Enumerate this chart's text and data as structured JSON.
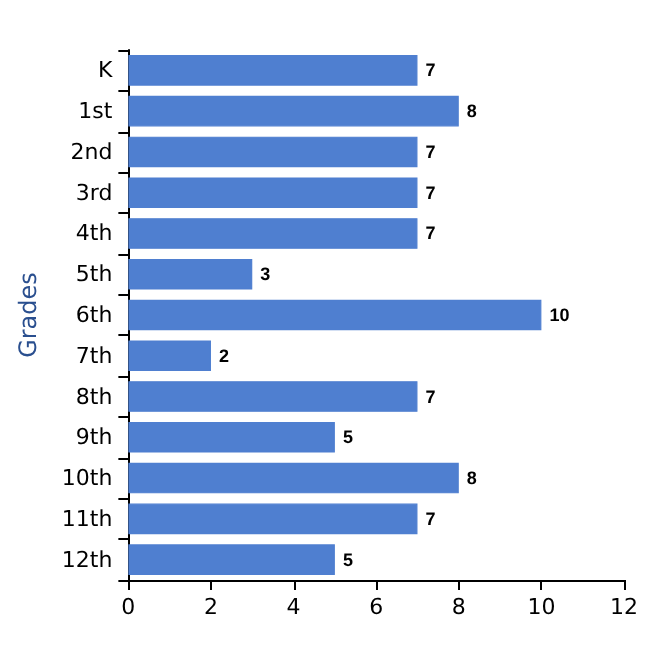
{
  "chart_data": {
    "type": "bar",
    "orientation": "horizontal",
    "ylabel": "Grades",
    "categories": [
      "K",
      "1st",
      "2nd",
      "3rd",
      "4th",
      "5th",
      "6th",
      "7th",
      "8th",
      "9th",
      "10th",
      "11th",
      "12th"
    ],
    "values": [
      7,
      8,
      7,
      7,
      7,
      3,
      10,
      2,
      7,
      5,
      8,
      7,
      5
    ],
    "color": "#4f7fd0",
    "xlim": [
      0,
      12
    ],
    "xticks": [
      0,
      2,
      4,
      6,
      8,
      10,
      12
    ],
    "data_labels": true,
    "grid": false
  }
}
